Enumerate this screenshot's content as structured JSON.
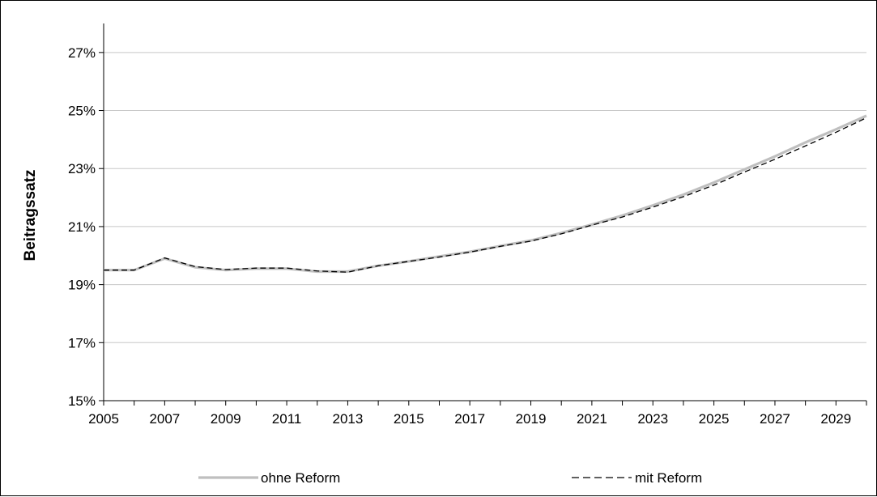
{
  "chart_data": {
    "type": "line",
    "title": "",
    "xlabel": "",
    "ylabel": "Beitragssatz",
    "x": [
      2005,
      2006,
      2007,
      2008,
      2009,
      2010,
      2011,
      2012,
      2013,
      2014,
      2015,
      2016,
      2017,
      2018,
      2019,
      2020,
      2021,
      2022,
      2023,
      2024,
      2025,
      2026,
      2027,
      2028,
      2029,
      2030
    ],
    "x_tick_labels": [
      "2005",
      "2007",
      "2009",
      "2011",
      "2013",
      "2015",
      "2017",
      "2019",
      "2021",
      "2023",
      "2025",
      "2027",
      "2029"
    ],
    "y_tick_labels": [
      "15%",
      "17%",
      "19%",
      "21%",
      "23%",
      "25%",
      "27%"
    ],
    "y_ticks": [
      15,
      17,
      19,
      21,
      23,
      25,
      27
    ],
    "xlim": [
      2005,
      2030
    ],
    "ylim": [
      15,
      28
    ],
    "grid": "horizontal",
    "legend_position": "bottom",
    "series": [
      {
        "name": "ohne Reform",
        "color": "#bfbfbf",
        "style": "solid",
        "values": [
          19.5,
          19.5,
          19.9,
          19.6,
          19.5,
          19.55,
          19.55,
          19.45,
          19.45,
          19.65,
          19.8,
          19.97,
          20.13,
          20.33,
          20.52,
          20.78,
          21.07,
          21.38,
          21.73,
          22.1,
          22.52,
          22.97,
          23.42,
          23.9,
          24.35,
          24.82
        ]
      },
      {
        "name": "mit Reform",
        "color": "#000000",
        "style": "dashed",
        "values": [
          19.5,
          19.5,
          19.92,
          19.62,
          19.52,
          19.57,
          19.57,
          19.47,
          19.43,
          19.65,
          19.8,
          19.95,
          20.12,
          20.32,
          20.5,
          20.75,
          21.05,
          21.33,
          21.67,
          22.03,
          22.43,
          22.88,
          23.32,
          23.78,
          24.25,
          24.75
        ]
      }
    ]
  }
}
